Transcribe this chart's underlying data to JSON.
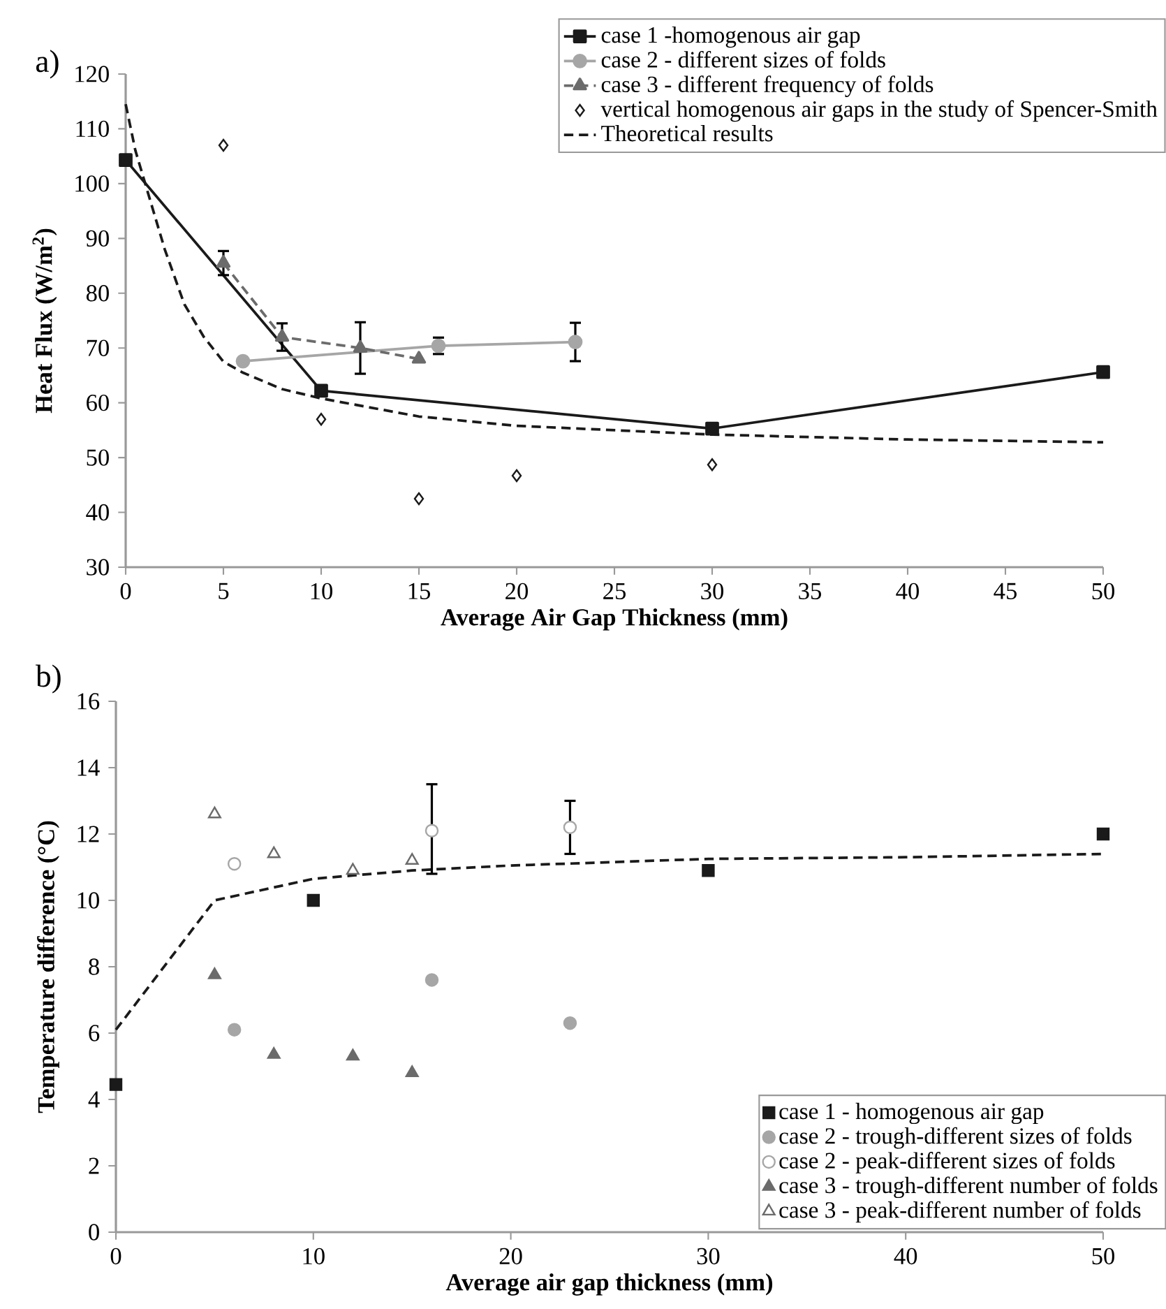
{
  "chart_data": [
    {
      "type": "line",
      "annotations": [
        "a)"
      ],
      "xlabel": "Average Air Gap Thickness (mm)",
      "ylabel": "Heat Flux (W/m$^{2}$)",
      "xlim": [
        0,
        50
      ],
      "ylim": [
        30,
        120
      ],
      "xticks": [
        0,
        5,
        10,
        15,
        20,
        25,
        30,
        35,
        40,
        45,
        50
      ],
      "yticks": [
        30,
        40,
        50,
        60,
        70,
        80,
        90,
        100,
        110,
        120
      ],
      "legend": "top right",
      "grid": false,
      "series": [
        {
          "name": "case 1 -homogenous air gap",
          "color": "#1a1a1a",
          "marker": "square",
          "line_style": "solid",
          "x": [
            0,
            10,
            30,
            50
          ],
          "values": [
            104.3,
            62.2,
            55.3,
            65.6
          ]
        },
        {
          "name": "case 2 - different sizes of folds",
          "color": "#a6a6a6",
          "marker": "circle",
          "line_style": "solid",
          "x": [
            6,
            16,
            23
          ],
          "values": [
            67.6,
            70.4,
            71.1
          ],
          "errors": [
            null,
            1.5,
            3.5
          ]
        },
        {
          "name": "case 3 - different frequency of folds",
          "color": "#6b6b6b",
          "marker": "triangle",
          "line_style": "dashed",
          "x": [
            5,
            8,
            12,
            15
          ],
          "values": [
            85.5,
            72,
            70,
            68
          ],
          "errors": [
            2.2,
            2.5,
            4.7,
            null
          ]
        },
        {
          "name": "vertical homogenous air gaps in the study of Spencer-Smith",
          "type": "scatter",
          "color": "#1a1a1a",
          "marker": "diamond",
          "x": [
            5,
            10,
            15,
            20,
            30
          ],
          "values": [
            107,
            57,
            42.5,
            46.7,
            48.7
          ]
        },
        {
          "name": "Theoretical results",
          "color": "#1a1a1a",
          "marker": "none",
          "line_style": "dashed",
          "x": [
            0,
            0.5,
            1,
            2,
            3,
            4,
            5,
            6,
            8,
            10,
            15,
            20,
            30,
            40,
            50
          ],
          "values": [
            114.5,
            106,
            100,
            88,
            78,
            72,
            67.5,
            65.5,
            62.5,
            60.8,
            57.5,
            55.8,
            54.2,
            53.3,
            52.8
          ]
        }
      ]
    },
    {
      "type": "scatter",
      "annotations": [
        "b)"
      ],
      "xlabel": "Average air gap thickness (mm)",
      "ylabel": "Temperature difference (°C)",
      "xlim": [
        0,
        50
      ],
      "ylim": [
        0,
        16
      ],
      "xticks": [
        0,
        10,
        20,
        30,
        40,
        50
      ],
      "yticks": [
        0,
        2,
        4,
        6,
        8,
        10,
        12,
        14,
        16
      ],
      "legend": "bottom right",
      "grid": false,
      "series": [
        {
          "name": "case 1 - homogenous air gap",
          "color": "#1a1a1a",
          "marker": "square",
          "x": [
            0,
            10,
            30,
            50
          ],
          "values": [
            4.45,
            10,
            10.9,
            12
          ]
        },
        {
          "name": "case 2 - trough-different sizes of folds",
          "color": "#a6a6a6",
          "marker": "circle",
          "x": [
            6,
            16,
            23
          ],
          "values": [
            6.1,
            7.6,
            6.3
          ]
        },
        {
          "name": "case 2 - peak-different sizes of folds",
          "color": "#a6a6a6",
          "marker": "circle-open",
          "x": [
            6,
            16,
            23
          ],
          "values": [
            11.1,
            12.1,
            12.2
          ],
          "errors": [
            null,
            [
              10.8,
              13.5
            ],
            [
              11.4,
              13.0
            ]
          ]
        },
        {
          "name": "case 3 - trough-different number of folds",
          "color": "#6b6b6b",
          "marker": "triangle",
          "x": [
            5,
            8,
            12,
            15
          ],
          "values": [
            7.75,
            5.35,
            5.3,
            4.8
          ]
        },
        {
          "name": "case 3 - peak-different number of folds",
          "color": "#6b6b6b",
          "marker": "triangle-open",
          "x": [
            5,
            8,
            12,
            15
          ],
          "values": [
            12.6,
            11.4,
            10.9,
            11.2
          ]
        },
        {
          "type": "line",
          "color": "#1a1a1a",
          "marker": "none",
          "line_style": "dashed",
          "x": [
            0,
            5,
            10,
            15,
            20,
            30,
            40,
            50
          ],
          "values": [
            6.1,
            10,
            10.65,
            10.9,
            11.05,
            11.25,
            11.3,
            11.4
          ]
        }
      ]
    }
  ]
}
